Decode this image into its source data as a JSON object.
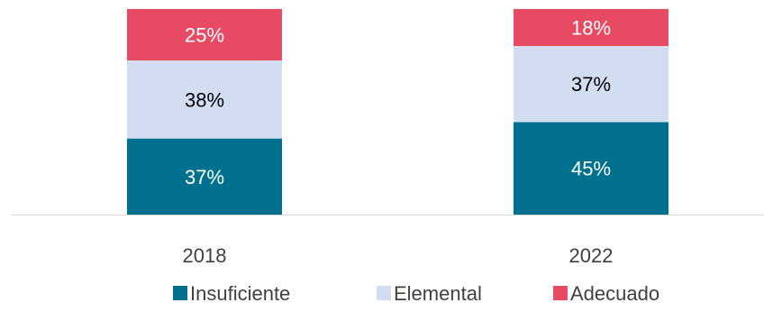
{
  "chart_data": {
    "type": "bar",
    "stacked": true,
    "categories": [
      "2018",
      "2022"
    ],
    "series": [
      {
        "name": "Insuficiente",
        "values": [
          37,
          45
        ],
        "labels": [
          "37%",
          "45%"
        ],
        "color": "#00708f",
        "label_color": "#ffffff"
      },
      {
        "name": "Elemental",
        "values": [
          38,
          37
        ],
        "labels": [
          "38%",
          "37%"
        ],
        "color": "#d3ddf2",
        "label_color": "#000000"
      },
      {
        "name": "Adecuado",
        "values": [
          25,
          18
        ],
        "labels": [
          "25%",
          "18%"
        ],
        "color": "#e84a63",
        "label_color": "#ffffff"
      }
    ],
    "ylim": [
      0,
      100
    ],
    "legend_position": "bottom",
    "grid": false,
    "axis_color": "#d9d9d9"
  }
}
